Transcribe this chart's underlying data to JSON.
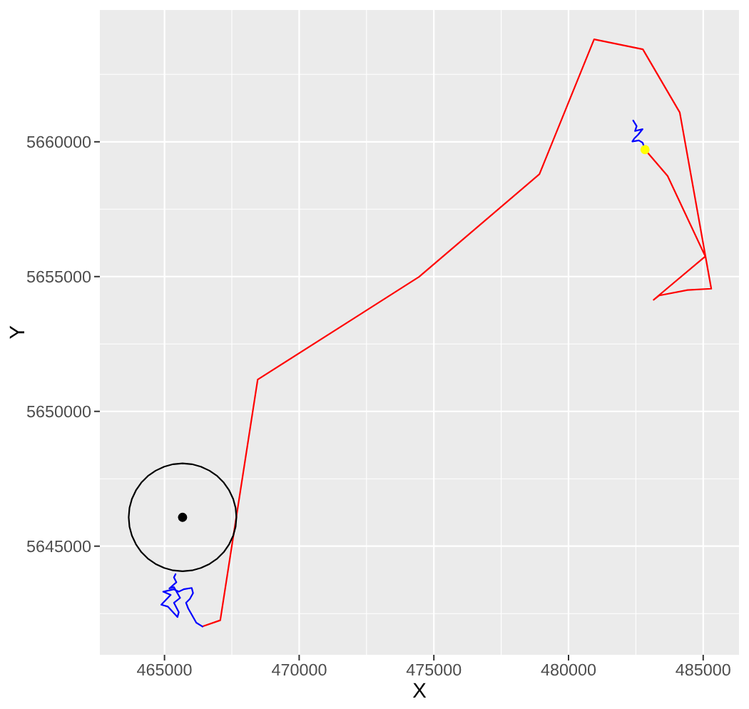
{
  "chart_data": {
    "type": "line",
    "xlabel": "X",
    "ylabel": "Y",
    "xlim": [
      462600,
      486330
    ],
    "ylim": [
      5640970,
      5664890
    ],
    "xticks": [
      465000,
      470000,
      475000,
      480000,
      485000
    ],
    "yticks": [
      5645000,
      5650000,
      5655000,
      5660000
    ],
    "grid": true,
    "line_style": "solid",
    "series": [
      {
        "color": "#ff0000",
        "x": [
          466410,
          467070,
          468460,
          474450,
          478920,
          480950,
          482760,
          484130,
          485300,
          484420,
          483370,
          483160,
          485080,
          483680,
          482840
        ],
        "values": [
          5642020,
          5642250,
          5651180,
          5654990,
          5658800,
          5663800,
          5663430,
          5661090,
          5654550,
          5654500,
          5654300,
          5654140,
          5655750,
          5658730,
          5659710
        ]
      },
      {
        "color": "#0000ff",
        "x": [
          466410,
          466180,
          465880,
          465800,
          465940,
          466060,
          466010,
          465710,
          465530,
          465350,
          464950,
          465230,
          464880,
          465120,
          465480,
          465530,
          465350,
          465580,
          465350,
          465180,
          465440,
          465350,
          465410
        ],
        "values": [
          5642020,
          5642160,
          5642690,
          5642900,
          5643040,
          5643260,
          5643450,
          5643400,
          5643310,
          5643400,
          5643310,
          5643190,
          5642830,
          5642760,
          5642370,
          5642550,
          5642900,
          5643080,
          5643480,
          5643430,
          5643660,
          5643840,
          5643960
        ]
      },
      {
        "color": "#0000ff",
        "x": [
          482840,
          482750,
          482610,
          482370,
          482440,
          482580,
          482750,
          482470,
          482530,
          482400
        ],
        "values": [
          5659710,
          5659970,
          5660050,
          5660010,
          5660120,
          5660260,
          5660470,
          5660400,
          5660580,
          5660790
        ]
      },
      {
        "color": "#000000",
        "x": [
          467670,
          467640,
          467550,
          467400,
          467200,
          466960,
          466670,
          466350,
          466020,
          465670,
          465320,
          464990,
          464670,
          464380,
          464140,
          463940,
          463790,
          463700,
          463670,
          463700,
          463790,
          463940,
          464140,
          464380,
          464670,
          464990,
          465320,
          465670,
          466020,
          466350,
          466670,
          466960,
          467200,
          467400,
          467550,
          467640,
          467670,
          467640
        ],
        "values": [
          5646070,
          5646420,
          5646750,
          5647070,
          5647360,
          5647600,
          5647800,
          5647950,
          5648040,
          5648070,
          5648040,
          5647950,
          5647800,
          5647600,
          5647360,
          5647070,
          5646750,
          5646420,
          5646070,
          5645720,
          5645390,
          5645070,
          5644780,
          5644540,
          5644340,
          5644190,
          5644100,
          5644070,
          5644100,
          5644190,
          5644340,
          5644540,
          5644780,
          5645070,
          5645390,
          5645720,
          5646070,
          5646420
        ]
      },
      {
        "type": "scatter",
        "color": "#000000",
        "marker": "circle",
        "x": [
          465670
        ],
        "values": [
          5646070
        ]
      },
      {
        "type": "scatter",
        "color": "#ffff00",
        "marker": "circle",
        "x": [
          482840
        ],
        "values": [
          5659710
        ]
      }
    ]
  }
}
